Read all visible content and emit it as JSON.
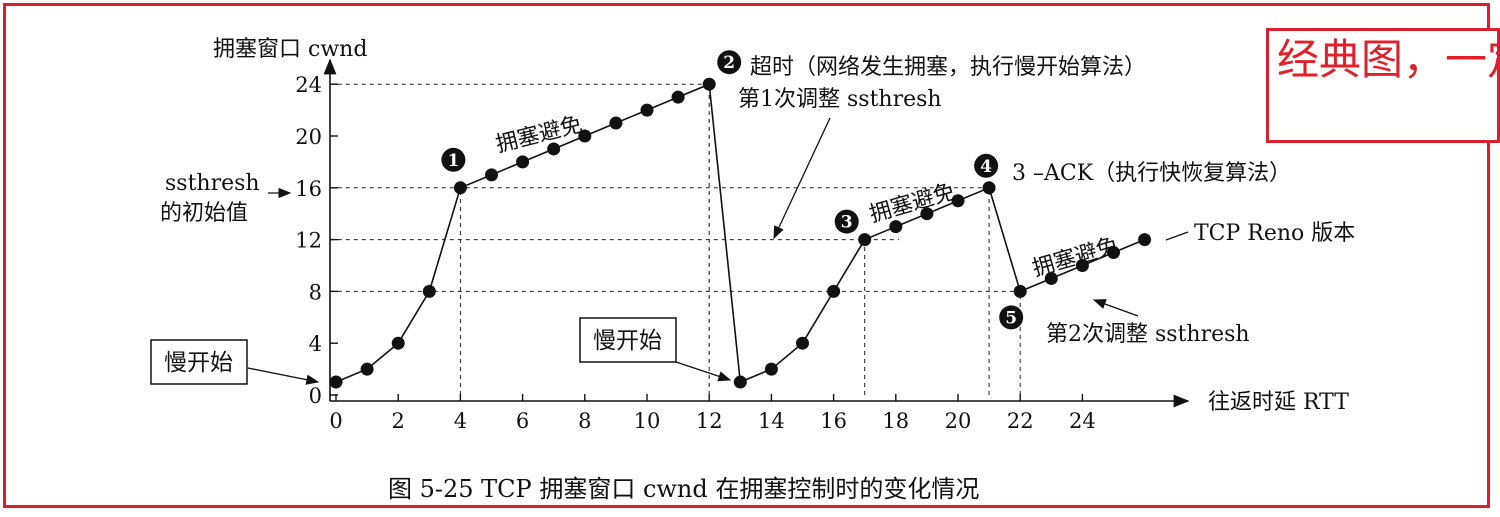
{
  "chart_data": {
    "type": "line",
    "title": "图 5-25    TCP 拥塞窗口 cwnd 在拥塞控制时的变化情况",
    "ylabel": "拥塞窗口  cwnd",
    "xlabel": "往返时延 RTT",
    "xlim": [
      0,
      26
    ],
    "ylim": [
      0,
      24
    ],
    "x_ticks": [
      0,
      2,
      4,
      6,
      8,
      10,
      12,
      14,
      16,
      18,
      20,
      22,
      24
    ],
    "y_ticks": [
      0,
      4,
      8,
      12,
      16,
      20,
      24
    ],
    "series": [
      {
        "x": [
          0,
          1,
          2,
          3,
          4,
          5,
          6,
          7,
          8,
          9,
          10,
          11,
          12,
          13,
          14,
          15,
          16,
          17,
          18,
          19,
          20,
          21,
          22,
          23,
          24,
          25,
          26
        ],
        "values": [
          1,
          2,
          4,
          8,
          16,
          17,
          18,
          19,
          20,
          21,
          22,
          23,
          24,
          1,
          2,
          4,
          8,
          12,
          13,
          14,
          15,
          16,
          8,
          9,
          10,
          11,
          12
        ]
      }
    ],
    "marker_labels": [
      {
        "num": "1",
        "x": 4,
        "y": 16
      },
      {
        "num": "2",
        "x": 12,
        "y": 24
      },
      {
        "num": "3",
        "x": 17,
        "y": 12
      },
      {
        "num": "4",
        "x": 21,
        "y": 16
      },
      {
        "num": "5",
        "x": 22,
        "y": 8
      }
    ],
    "annotations": {
      "slow_start_1": "慢开始",
      "slow_start_2": "慢开始",
      "ssthresh_init_1": "ssthresh",
      "ssthresh_init_2": "的初始值",
      "ca_1": "拥塞避免",
      "ca_2": "拥塞避免",
      "ca_3": "拥塞避免",
      "timeout_1": "超时（网络发生拥塞，执行慢开始算法）",
      "timeout_2": "第1次调整 ssthresh",
      "ack3": "3 –ACK（执行快恢复算法）",
      "reno": "TCP Reno 版本",
      "adjust2": "第2次调整 ssthresh"
    }
  },
  "overlay": {
    "text": "经典图，一定要理解"
  },
  "colors": {
    "frame": "#d9202e",
    "overlay_text": "#e0202a",
    "ink": "#111111"
  }
}
